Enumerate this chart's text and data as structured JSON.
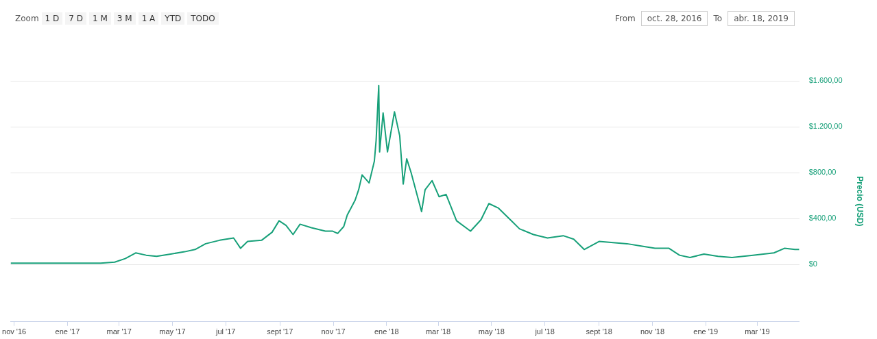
{
  "chart_data": {
    "type": "line",
    "ylabel": "Precio (USD)",
    "annotations": [
      "Zoom",
      "1 D",
      "7 D",
      "1 M",
      "3 M",
      "1 A",
      "YTD",
      "TODO",
      "From",
      "oct. 28, 2016",
      "To",
      "abr. 18, 2019"
    ],
    "series": [
      {
        "color": "#17a079",
        "x": [
          "2016-10-28",
          "2016-12-30",
          "2017-02-08",
          "2017-02-24",
          "2017-03-08",
          "2017-03-20",
          "2017-04-01",
          "2017-04-13",
          "2017-04-29",
          "2017-05-15",
          "2017-05-27",
          "2017-06-08",
          "2017-06-24",
          "2017-07-10",
          "2017-07-18",
          "2017-07-26",
          "2017-08-11",
          "2017-08-23",
          "2017-08-31",
          "2017-09-08",
          "2017-09-16",
          "2017-09-24",
          "2017-10-07",
          "2017-10-23",
          "2017-10-31",
          "2017-11-06",
          "2017-11-13",
          "2017-11-17",
          "2017-11-26",
          "2017-11-30",
          "2017-12-04",
          "2017-12-12",
          "2017-12-18",
          "2017-12-20",
          "2017-12-23",
          "2017-12-24",
          "2017-12-28",
          "2018-01-02",
          "2018-01-10",
          "2018-01-16",
          "2018-01-20",
          "2018-01-24",
          "2018-01-29",
          "2018-02-10",
          "2018-02-14",
          "2018-02-22",
          "2018-03-02",
          "2018-03-10",
          "2018-03-22",
          "2018-04-07",
          "2018-04-19",
          "2018-04-28",
          "2018-05-09",
          "2018-05-25",
          "2018-06-02",
          "2018-06-18",
          "2018-07-04",
          "2018-07-22",
          "2018-08-03",
          "2018-08-15",
          "2018-09-01",
          "2018-09-17",
          "2018-10-03",
          "2018-10-19",
          "2018-11-04",
          "2018-11-20",
          "2018-12-02",
          "2018-12-14",
          "2018-12-30",
          "2019-01-15",
          "2019-01-31",
          "2019-02-24",
          "2019-03-20",
          "2019-04-01",
          "2019-04-13",
          "2019-04-18"
        ],
        "values": [
          10,
          10,
          10,
          20,
          50,
          100,
          80,
          70,
          90,
          110,
          130,
          180,
          210,
          230,
          140,
          200,
          210,
          280,
          380,
          340,
          260,
          350,
          320,
          290,
          290,
          270,
          330,
          430,
          560,
          650,
          780,
          710,
          900,
          1080,
          1560,
          980,
          1320,
          980,
          1330,
          1120,
          700,
          920,
          800,
          460,
          650,
          730,
          590,
          610,
          380,
          290,
          390,
          530,
          490,
          370,
          310,
          260,
          230,
          250,
          220,
          130,
          200,
          190,
          180,
          160,
          140,
          140,
          80,
          60,
          90,
          70,
          60,
          80,
          100,
          140,
          130,
          130
        ]
      }
    ],
    "xlim": [
      "2016-10-28",
      "2019-04-18"
    ],
    "xticks": [
      {
        "value": "2016-11-01",
        "label": "nov '16"
      },
      {
        "value": "2017-01-01",
        "label": "ene '17"
      },
      {
        "value": "2017-03-01",
        "label": "mar '17"
      },
      {
        "value": "2017-05-01",
        "label": "may '17"
      },
      {
        "value": "2017-07-01",
        "label": "jul '17"
      },
      {
        "value": "2017-09-01",
        "label": "sept '17"
      },
      {
        "value": "2017-11-01",
        "label": "nov '17"
      },
      {
        "value": "2018-01-01",
        "label": "ene '18"
      },
      {
        "value": "2018-03-01",
        "label": "mar '18"
      },
      {
        "value": "2018-05-01",
        "label": "may '18"
      },
      {
        "value": "2018-07-01",
        "label": "jul '18"
      },
      {
        "value": "2018-09-01",
        "label": "sept '18"
      },
      {
        "value": "2018-11-01",
        "label": "nov '18"
      },
      {
        "value": "2019-01-01",
        "label": "ene '19"
      },
      {
        "value": "2019-03-01",
        "label": "mar '19"
      }
    ],
    "ylim": [
      -500,
      1600
    ],
    "yticks": [
      {
        "value": 0,
        "label": "$0"
      },
      {
        "value": 400,
        "label": "$400,00"
      },
      {
        "value": 800,
        "label": "$800,00"
      },
      {
        "value": 1200,
        "label": "$1.200,00"
      },
      {
        "value": 1600,
        "label": "$1.600,00"
      }
    ],
    "grid": "y",
    "marker": "none",
    "line_style": "solid",
    "legend": false
  }
}
